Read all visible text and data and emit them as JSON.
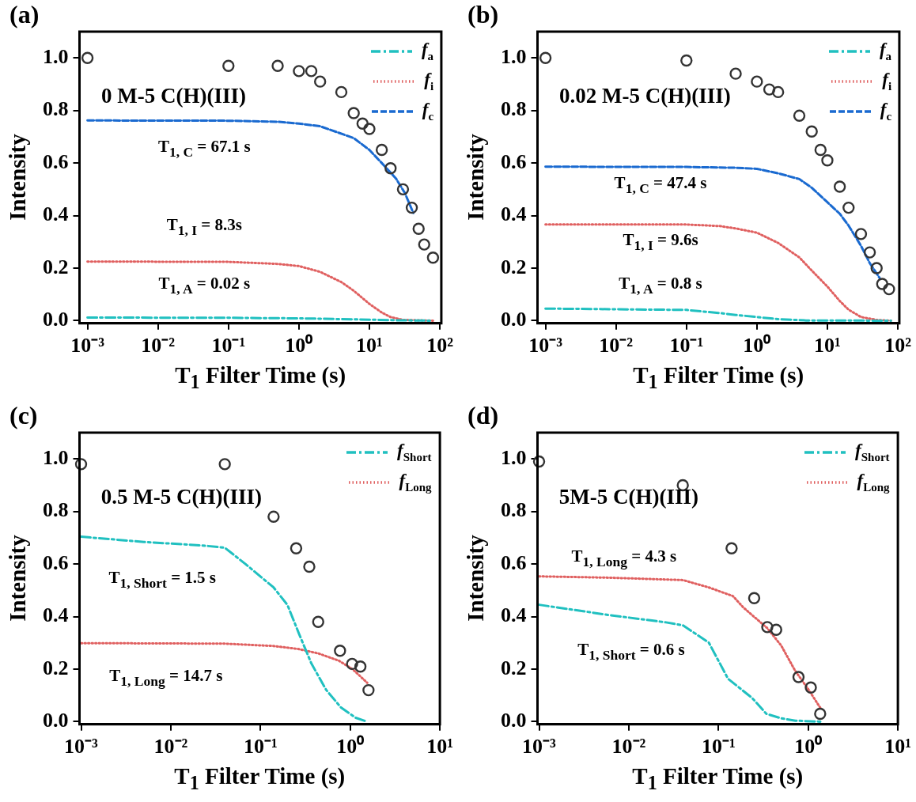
{
  "chart_data": [
    {
      "type": "line",
      "title": "0 M-5 C(H)(III)",
      "xlabel": "T$_{1}$ Filter Time (s)",
      "ylabel": "Intensity",
      "log": "x",
      "xlim": [
        0.00077,
        105
      ],
      "xticks": [
        {
          "value": 0.001,
          "label": "10⁻³"
        },
        {
          "value": 0.01,
          "label": "10⁻²"
        },
        {
          "value": 0.1,
          "label": "10⁻¹"
        },
        {
          "value": 1,
          "label": "10⁰"
        },
        {
          "value": 10,
          "label": "10¹"
        },
        {
          "value": 100,
          "label": "10²"
        }
      ],
      "ylim": [
        -0.01,
        1.1
      ],
      "yticks": [
        {
          "value": 0,
          "label": "0.0"
        },
        {
          "value": 0.2,
          "label": "0.2"
        },
        {
          "value": 0.4,
          "label": "0.4"
        },
        {
          "value": 0.6,
          "label": "0.6"
        },
        {
          "value": 0.8,
          "label": "0.8"
        },
        {
          "value": 1,
          "label": "1.0"
        }
      ],
      "legend": "top right",
      "annotations": [
        "(a)",
        "T$_{1, C}$ = 67.1 s",
        "T$_{1, I}$ = 8.3s",
        "T$_{1, A}$ = 0.02 s"
      ],
      "series": [
        {
          "type": "scatter",
          "marker": "circle",
          "color": "#333333",
          "x": [
            0.001,
            0.1,
            0.5,
            1,
            1.5,
            2,
            4,
            6,
            8,
            10,
            15,
            20,
            30,
            40,
            50,
            60,
            80
          ],
          "values": [
            1.0,
            0.97,
            0.97,
            0.95,
            0.95,
            0.91,
            0.87,
            0.79,
            0.75,
            0.73,
            0.65,
            0.58,
            0.5,
            0.43,
            0.35,
            0.29,
            0.24
          ]
        },
        {
          "name": "f$_{a}$",
          "type": "line",
          "marker": "none",
          "line_style": "dashdot",
          "color": "#20c0c0",
          "x": [
            0.001,
            0.1,
            1,
            10,
            20,
            80
          ],
          "values": [
            0.012,
            0.011,
            0.009,
            0.004,
            0.002,
            0
          ]
        },
        {
          "name": "f$_{i}$",
          "type": "line",
          "marker": "none",
          "line_style": "dotted",
          "color": "#e06060",
          "x": [
            0.001,
            0.1,
            0.5,
            1,
            2,
            4,
            6,
            10,
            15,
            20,
            30,
            80
          ],
          "values": [
            0.225,
            0.224,
            0.216,
            0.208,
            0.186,
            0.147,
            0.114,
            0.064,
            0.031,
            0.014,
            0.003,
            0
          ]
        },
        {
          "name": "f$_{c}$",
          "type": "line",
          "marker": "none",
          "line_style": "dashed",
          "color": "#1a6ad0",
          "x": [
            0.001,
            0.1,
            0.5,
            1,
            2,
            6,
            10,
            15,
            24,
            32,
            42
          ],
          "values": [
            0.762,
            0.761,
            0.757,
            0.75,
            0.74,
            0.695,
            0.65,
            0.6,
            0.54,
            0.485,
            0.41
          ]
        }
      ]
    },
    {
      "type": "line",
      "title": "0.02 M-5 C(H)(III)",
      "xlabel": "T$_{1}$ Filter Time (s)",
      "ylabel": "Intensity",
      "log": "x",
      "xlim": [
        0.00077,
        105
      ],
      "xticks": [
        {
          "value": 0.001,
          "label": "10⁻³"
        },
        {
          "value": 0.01,
          "label": "10⁻²"
        },
        {
          "value": 0.1,
          "label": "10⁻¹"
        },
        {
          "value": 1,
          "label": "10⁰"
        },
        {
          "value": 10,
          "label": "10¹"
        },
        {
          "value": 100,
          "label": "10²"
        }
      ],
      "ylim": [
        -0.01,
        1.1
      ],
      "yticks": [
        {
          "value": 0,
          "label": "0.0"
        },
        {
          "value": 0.2,
          "label": "0.2"
        },
        {
          "value": 0.4,
          "label": "0.4"
        },
        {
          "value": 0.6,
          "label": "0.6"
        },
        {
          "value": 0.8,
          "label": "0.8"
        },
        {
          "value": 1,
          "label": "1.0"
        }
      ],
      "legend": "top right",
      "annotations": [
        "(b)",
        "T$_{1, C}$ = 47.4 s",
        "T$_{1, I}$ = 9.6s",
        "T$_{1, A}$ = 0.8 s"
      ],
      "series": [
        {
          "type": "scatter",
          "marker": "circle",
          "color": "#333333",
          "x": [
            0.001,
            0.1,
            0.5,
            1,
            1.5,
            2,
            4,
            6,
            8,
            10,
            15,
            20,
            30,
            40,
            50,
            60,
            75
          ],
          "values": [
            1.0,
            0.99,
            0.94,
            0.91,
            0.88,
            0.87,
            0.78,
            0.72,
            0.65,
            0.61,
            0.51,
            0.43,
            0.33,
            0.26,
            0.2,
            0.14,
            0.12
          ]
        },
        {
          "name": "f$_{a}$",
          "type": "line",
          "marker": "none",
          "line_style": "dashdot",
          "color": "#20c0c0",
          "x": [
            0.001,
            0.1,
            0.3,
            0.5,
            1,
            2,
            5,
            80
          ],
          "values": [
            0.046,
            0.041,
            0.029,
            0.022,
            0.014,
            0.006,
            0.001,
            0
          ]
        },
        {
          "name": "f$_{i}$",
          "type": "line",
          "marker": "none",
          "line_style": "dotted",
          "color": "#e06060",
          "x": [
            0.001,
            0.1,
            0.3,
            0.5,
            1,
            2,
            4,
            6,
            10,
            15,
            20,
            30,
            50,
            80
          ],
          "values": [
            0.366,
            0.366,
            0.36,
            0.351,
            0.335,
            0.296,
            0.241,
            0.191,
            0.13,
            0.075,
            0.042,
            0.014,
            0.003,
            0
          ]
        },
        {
          "name": "f$_{c}$",
          "type": "line",
          "marker": "none",
          "line_style": "dashed",
          "color": "#1a6ad0",
          "x": [
            0.001,
            0.1,
            0.5,
            1,
            2,
            4,
            6,
            10,
            15,
            20,
            30,
            40,
            55
          ],
          "values": [
            0.586,
            0.585,
            0.582,
            0.578,
            0.561,
            0.539,
            0.506,
            0.451,
            0.407,
            0.362,
            0.285,
            0.219,
            0.163
          ]
        }
      ]
    },
    {
      "type": "line",
      "title": "0.5 M-5 C(H)(III)",
      "xlabel": "T$_{1}$ Filter Time (s)",
      "ylabel": "Intensity",
      "log": "x",
      "xlim": [
        0.00096,
        10
      ],
      "xticks": [
        {
          "value": 0.001,
          "label": "10⁻³"
        },
        {
          "value": 0.01,
          "label": "10⁻²"
        },
        {
          "value": 0.1,
          "label": "10⁻¹"
        },
        {
          "value": 1,
          "label": "10⁰"
        },
        {
          "value": 10,
          "label": "10¹"
        }
      ],
      "ylim": [
        -0.01,
        1.1
      ],
      "yticks": [
        {
          "value": 0,
          "label": "0.0"
        },
        {
          "value": 0.2,
          "label": "0.2"
        },
        {
          "value": 0.4,
          "label": "0.4"
        },
        {
          "value": 0.6,
          "label": "0.6"
        },
        {
          "value": 0.8,
          "label": "0.8"
        },
        {
          "value": 1,
          "label": "1.0"
        }
      ],
      "legend": "top right",
      "annotations": [
        "(c)",
        "T$_{1, Short}$ = 1.5 s",
        "T$_{1, Long}$ = 14.7 s"
      ],
      "series": [
        {
          "type": "scatter",
          "marker": "circle",
          "color": "#333333",
          "x": [
            0.001,
            0.04,
            0.14,
            0.25,
            0.35,
            0.44,
            0.77,
            1.05,
            1.3,
            1.6
          ],
          "values": [
            0.98,
            0.98,
            0.78,
            0.66,
            0.59,
            0.38,
            0.27,
            0.22,
            0.21,
            0.12
          ]
        },
        {
          "name": "f$_{Short}$",
          "type": "line",
          "marker": "none",
          "line_style": "dashdot",
          "color": "#20c0c0",
          "x": [
            0.001,
            0.005,
            0.022,
            0.04,
            0.068,
            0.14,
            0.2,
            0.27,
            0.37,
            0.54,
            0.79,
            1.15,
            1.55
          ],
          "values": [
            0.704,
            0.684,
            0.671,
            0.662,
            0.6,
            0.511,
            0.444,
            0.333,
            0.221,
            0.121,
            0.054,
            0.015,
            0
          ]
        },
        {
          "name": "f$_{Long}$",
          "type": "line",
          "marker": "none",
          "line_style": "dotted",
          "color": "#e06060",
          "x": [
            0.001,
            0.04,
            0.14,
            0.26,
            0.44,
            0.75,
            1.07,
            1.55
          ],
          "values": [
            0.299,
            0.297,
            0.288,
            0.277,
            0.26,
            0.232,
            0.199,
            0.148
          ]
        }
      ]
    },
    {
      "type": "line",
      "title": "5M-5 C(H)(III)",
      "xlabel": "T$_{1}$ Filter Time (s)",
      "ylabel": "Intensity",
      "log": "x",
      "xlim": [
        0.00096,
        10
      ],
      "xticks": [
        {
          "value": 0.001,
          "label": "10⁻³"
        },
        {
          "value": 0.01,
          "label": "10⁻²"
        },
        {
          "value": 0.1,
          "label": "10⁻¹"
        },
        {
          "value": 1,
          "label": "10⁰"
        },
        {
          "value": 10,
          "label": "10¹"
        }
      ],
      "ylim": [
        -0.01,
        1.1
      ],
      "yticks": [
        {
          "value": 0,
          "label": "0.0"
        },
        {
          "value": 0.2,
          "label": "0.2"
        },
        {
          "value": 0.4,
          "label": "0.4"
        },
        {
          "value": 0.6,
          "label": "0.6"
        },
        {
          "value": 0.8,
          "label": "0.8"
        },
        {
          "value": 1,
          "label": "1.0"
        }
      ],
      "legend": "top right",
      "annotations": [
        "(d)",
        "T$_{1, Long}$ = 4.3 s",
        "T$_{1, Short}$ = 0.6 s"
      ],
      "series": [
        {
          "type": "scatter",
          "marker": "circle",
          "color": "#333333",
          "x": [
            0.001,
            0.04,
            0.14,
            0.25,
            0.35,
            0.44,
            0.78,
            1.07,
            1.36
          ],
          "values": [
            0.99,
            0.9,
            0.66,
            0.47,
            0.36,
            0.35,
            0.17,
            0.13,
            0.03
          ]
        },
        {
          "name": "f$_{Short}$",
          "type": "line",
          "marker": "none",
          "line_style": "dashdot",
          "color": "#20c0c0",
          "x": [
            0.001,
            0.006,
            0.026,
            0.04,
            0.078,
            0.128,
            0.236,
            0.342,
            0.5,
            0.72,
            1.4
          ],
          "values": [
            0.445,
            0.406,
            0.378,
            0.367,
            0.301,
            0.163,
            0.091,
            0.03,
            0.013,
            0.004,
            0
          ]
        },
        {
          "name": "f$_{Long}$",
          "type": "line",
          "marker": "none",
          "line_style": "dotted",
          "color": "#e06060",
          "x": [
            0.001,
            0.006,
            0.04,
            0.078,
            0.145,
            0.19,
            0.35,
            0.5,
            0.71,
            1.0,
            1.37
          ],
          "values": [
            0.553,
            0.548,
            0.539,
            0.511,
            0.478,
            0.434,
            0.356,
            0.29,
            0.196,
            0.124,
            0.052
          ]
        }
      ]
    }
  ]
}
